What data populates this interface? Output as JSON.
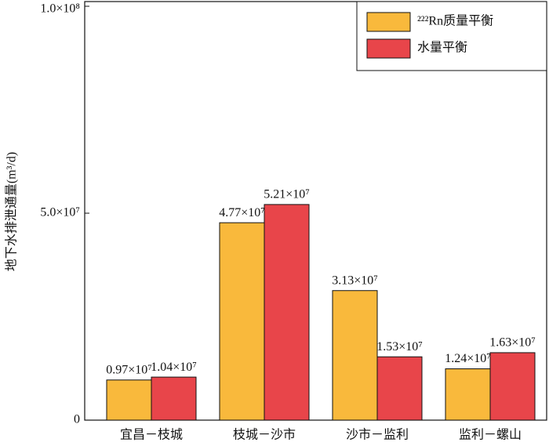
{
  "chart_data": {
    "type": "bar",
    "y_label": "地下水排泄通量(m³/d)",
    "categories": [
      "宜昌－枝城",
      "枝城－沙市",
      "沙市－监利",
      "监利－螺山"
    ],
    "series": [
      {
        "name": "²²²Rn质量平衡",
        "color": "#f9b93c",
        "values": [
          9700000,
          47700000,
          31300000,
          12400000
        ],
        "value_labels": [
          "0.97×10⁷",
          "4.77×10⁷",
          "3.13×10⁷",
          "1.24×10⁷"
        ]
      },
      {
        "name": "水量平衡",
        "color": "#e8454a",
        "values": [
          10400000,
          52100000,
          15300000,
          16300000
        ],
        "value_labels": [
          "1.04×10⁷",
          "5.21×10⁷",
          "1.53×10⁷",
          "1.63×10⁷"
        ]
      }
    ],
    "ylim": [
      0,
      100000000
    ],
    "yticks": [
      0,
      {
        "value": 50000000,
        "label": "5.0×10⁷"
      },
      {
        "value": 100000000,
        "label": "1.0×10⁸"
      }
    ],
    "legend": "upper right"
  }
}
